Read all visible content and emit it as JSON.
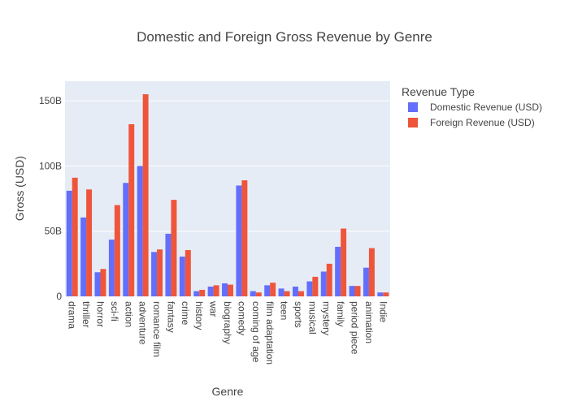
{
  "chart_data": {
    "type": "bar",
    "title": "Domestic and Foreign Gross Revenue by Genre",
    "xlabel": "Genre",
    "ylabel": "Gross (USD)",
    "ylim": [
      0,
      165000000000
    ],
    "yticks": [
      0,
      50000000000,
      100000000000,
      150000000000
    ],
    "ytick_labels": [
      "0",
      "50B",
      "100B",
      "150B"
    ],
    "grid": true,
    "legend": {
      "title": "Revenue Type",
      "placement": "right"
    },
    "categories": [
      "drama",
      "thriller",
      "horror",
      "sci-fi",
      "action",
      "adventure",
      "romance film",
      "fantasy",
      "crime",
      "history",
      "war",
      "biography",
      "comedy",
      "coming of age",
      "film adaptation",
      "teen",
      "sports",
      "musical",
      "mystery",
      "family",
      "period piece",
      "animation",
      "Indie"
    ],
    "series": [
      {
        "name": "Domestic Revenue (USD)",
        "color": "#636efa",
        "values": [
          81000000000,
          60500000000,
          18500000000,
          43500000000,
          87000000000,
          100000000000,
          34000000000,
          48000000000,
          30500000000,
          4000000000,
          7500000000,
          10000000000,
          85000000000,
          4000000000,
          8500000000,
          6000000000,
          7500000000,
          11500000000,
          19000000000,
          38000000000,
          8000000000,
          22000000000,
          3000000000
        ]
      },
      {
        "name": "Foreign Revenue (USD)",
        "color": "#ef553b",
        "values": [
          91000000000,
          82000000000,
          21000000000,
          70000000000,
          132000000000,
          155000000000,
          36000000000,
          74000000000,
          35500000000,
          5000000000,
          8500000000,
          9000000000,
          89000000000,
          3000000000,
          10500000000,
          4000000000,
          4000000000,
          15000000000,
          25000000000,
          52000000000,
          8000000000,
          37000000000,
          3000000000
        ]
      }
    ]
  }
}
